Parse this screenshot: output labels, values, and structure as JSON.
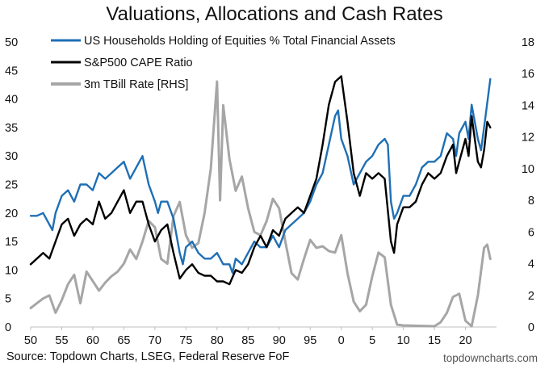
{
  "page": {
    "title": "Valuations, Allocations and Cash Rates",
    "source": "Source: Topdown Charts, LSEG, Federal Reserve FoF",
    "brand": "topdowncharts.com"
  },
  "chart_data": {
    "type": "line",
    "title": "Valuations, Allocations and Cash Rates",
    "xlim": [
      1950,
      2025
    ],
    "ylim_left": [
      0,
      50
    ],
    "ylim_right": [
      0,
      18
    ],
    "x_ticks": [
      50,
      55,
      60,
      65,
      70,
      75,
      80,
      85,
      90,
      95,
      0,
      5,
      10,
      15,
      20
    ],
    "y_ticks_left": [
      0,
      5,
      10,
      15,
      20,
      25,
      30,
      35,
      40,
      45,
      50
    ],
    "y_ticks_right": [
      0,
      2,
      4,
      6,
      8,
      10,
      12,
      14,
      16,
      18
    ],
    "grid": false,
    "legend_position": "top-left",
    "series": [
      {
        "name": "US Households Holding of Equities % Total Financial Assets",
        "axis": "left",
        "color": "#1f6fb5",
        "x": [
          1950,
          1951,
          1952,
          1953,
          1953.5,
          1954,
          1955,
          1956,
          1957,
          1958,
          1959,
          1960,
          1961,
          1962,
          1963,
          1964,
          1965,
          1966,
          1967,
          1968,
          1969,
          1970,
          1970.5,
          1971,
          1972,
          1973,
          1974,
          1974.5,
          1975,
          1976,
          1977,
          1978,
          1979,
          1980,
          1981,
          1982,
          1982.5,
          1983,
          1984,
          1985,
          1986,
          1987,
          1988,
          1989,
          1990,
          1991,
          1992,
          1993,
          1994,
          1995,
          1996,
          1997,
          1998,
          1999,
          1999.5,
          2000,
          2001,
          2002,
          2003,
          2004,
          2005,
          2006,
          2007,
          2007.5,
          2008,
          2008.5,
          2009,
          2010,
          2011,
          2012,
          2013,
          2014,
          2015,
          2016,
          2017,
          2018,
          2018.5,
          2019,
          2020,
          2020.5,
          2021,
          2022,
          2022.5,
          2023,
          2024
        ],
        "values": [
          19.5,
          19.5,
          20,
          18,
          17,
          20,
          23,
          24,
          22,
          25,
          25,
          24,
          27,
          26,
          27,
          28,
          29,
          26,
          28,
          30,
          25,
          22,
          20,
          22,
          22,
          19,
          13,
          11,
          14,
          15,
          13,
          12,
          12,
          13,
          11,
          11,
          9.5,
          12,
          11,
          13,
          15,
          14,
          14,
          16,
          14,
          17,
          18,
          19,
          20,
          22,
          25,
          27,
          32,
          37,
          38,
          33,
          30,
          25,
          27,
          29,
          30,
          32,
          33,
          32,
          22,
          19,
          20,
          23,
          23,
          25,
          28,
          29,
          29,
          30,
          34,
          33,
          30,
          34,
          36,
          33,
          39,
          33,
          31,
          35,
          43.5
        ]
      },
      {
        "name": "S&P500 CAPE Ratio",
        "axis": "left",
        "color": "#000000",
        "x": [
          1950,
          1951,
          1952,
          1953,
          1954,
          1955,
          1956,
          1957,
          1958,
          1959,
          1960,
          1961,
          1962,
          1963,
          1964,
          1965,
          1966,
          1967,
          1968,
          1969,
          1970,
          1971,
          1972,
          1973,
          1974,
          1975,
          1976,
          1977,
          1978,
          1979,
          1980,
          1981,
          1982,
          1983,
          1984,
          1985,
          1986,
          1987,
          1988,
          1989,
          1990,
          1991,
          1992,
          1993,
          1994,
          1995,
          1996,
          1997,
          1998,
          1999,
          2000,
          2001,
          2002,
          2003,
          2004,
          2005,
          2006,
          2007,
          2008,
          2008.5,
          2009,
          2010,
          2011,
          2012,
          2013,
          2014,
          2015,
          2016,
          2017,
          2018,
          2018.5,
          2019,
          2020,
          2020.5,
          2021,
          2022,
          2022.5,
          2023,
          2023.5,
          2024
        ],
        "values": [
          11,
          12,
          13,
          12,
          15,
          18,
          19,
          16,
          18,
          19,
          18,
          22,
          19,
          20,
          22,
          24,
          20,
          22,
          22,
          18,
          15,
          17,
          18,
          13,
          8.5,
          10,
          11,
          9.5,
          9,
          9,
          8,
          8,
          7.5,
          10,
          9.5,
          11,
          14,
          16,
          14,
          17,
          16,
          19,
          20,
          21,
          20,
          23,
          26,
          32,
          39,
          43,
          44,
          36,
          27,
          23,
          27,
          26,
          27,
          26,
          15,
          13,
          18,
          21,
          21,
          22,
          25,
          27,
          26,
          27,
          30,
          32,
          27,
          29,
          33,
          30,
          37,
          29,
          28,
          31,
          36,
          35
        ]
      },
      {
        "name": "3m TBill Rate [RHS]",
        "axis": "right",
        "color": "#a6a6a6",
        "x": [
          1950,
          1951,
          1952,
          1953,
          1954,
          1955,
          1956,
          1957,
          1958,
          1959,
          1960,
          1961,
          1962,
          1963,
          1964,
          1965,
          1966,
          1967,
          1968,
          1969,
          1970,
          1971,
          1972,
          1973,
          1974,
          1975,
          1976,
          1977,
          1978,
          1979,
          1980,
          1980.5,
          1981,
          1982,
          1983,
          1984,
          1985,
          1986,
          1987,
          1988,
          1989,
          1990,
          1991,
          1992,
          1993,
          1994,
          1995,
          1996,
          1997,
          1998,
          1999,
          2000,
          2001,
          2002,
          2003,
          2004,
          2005,
          2006,
          2007,
          2008,
          2009,
          2010,
          2015,
          2016,
          2017,
          2018,
          2019,
          2020,
          2021,
          2022,
          2023,
          2023.5,
          2024
        ],
        "values": [
          1.2,
          1.5,
          1.8,
          2.0,
          0.9,
          1.7,
          2.7,
          3.3,
          1.5,
          3.5,
          2.9,
          2.3,
          2.8,
          3.2,
          3.5,
          4.0,
          4.9,
          4.3,
          5.4,
          6.7,
          6.3,
          4.3,
          4.0,
          7.0,
          7.9,
          5.8,
          5.0,
          5.3,
          7.2,
          10.0,
          15.5,
          8.0,
          14.0,
          10.6,
          8.6,
          9.5,
          7.5,
          6.0,
          5.8,
          6.7,
          8.1,
          7.5,
          5.4,
          3.4,
          3.0,
          4.3,
          5.5,
          5.0,
          5.1,
          4.8,
          4.7,
          5.8,
          3.4,
          1.6,
          1.0,
          1.4,
          3.2,
          4.7,
          4.4,
          1.4,
          0.15,
          0.1,
          0.05,
          0.3,
          0.9,
          1.9,
          2.1,
          0.4,
          0.05,
          2.0,
          5.0,
          5.2,
          4.3
        ]
      }
    ]
  }
}
